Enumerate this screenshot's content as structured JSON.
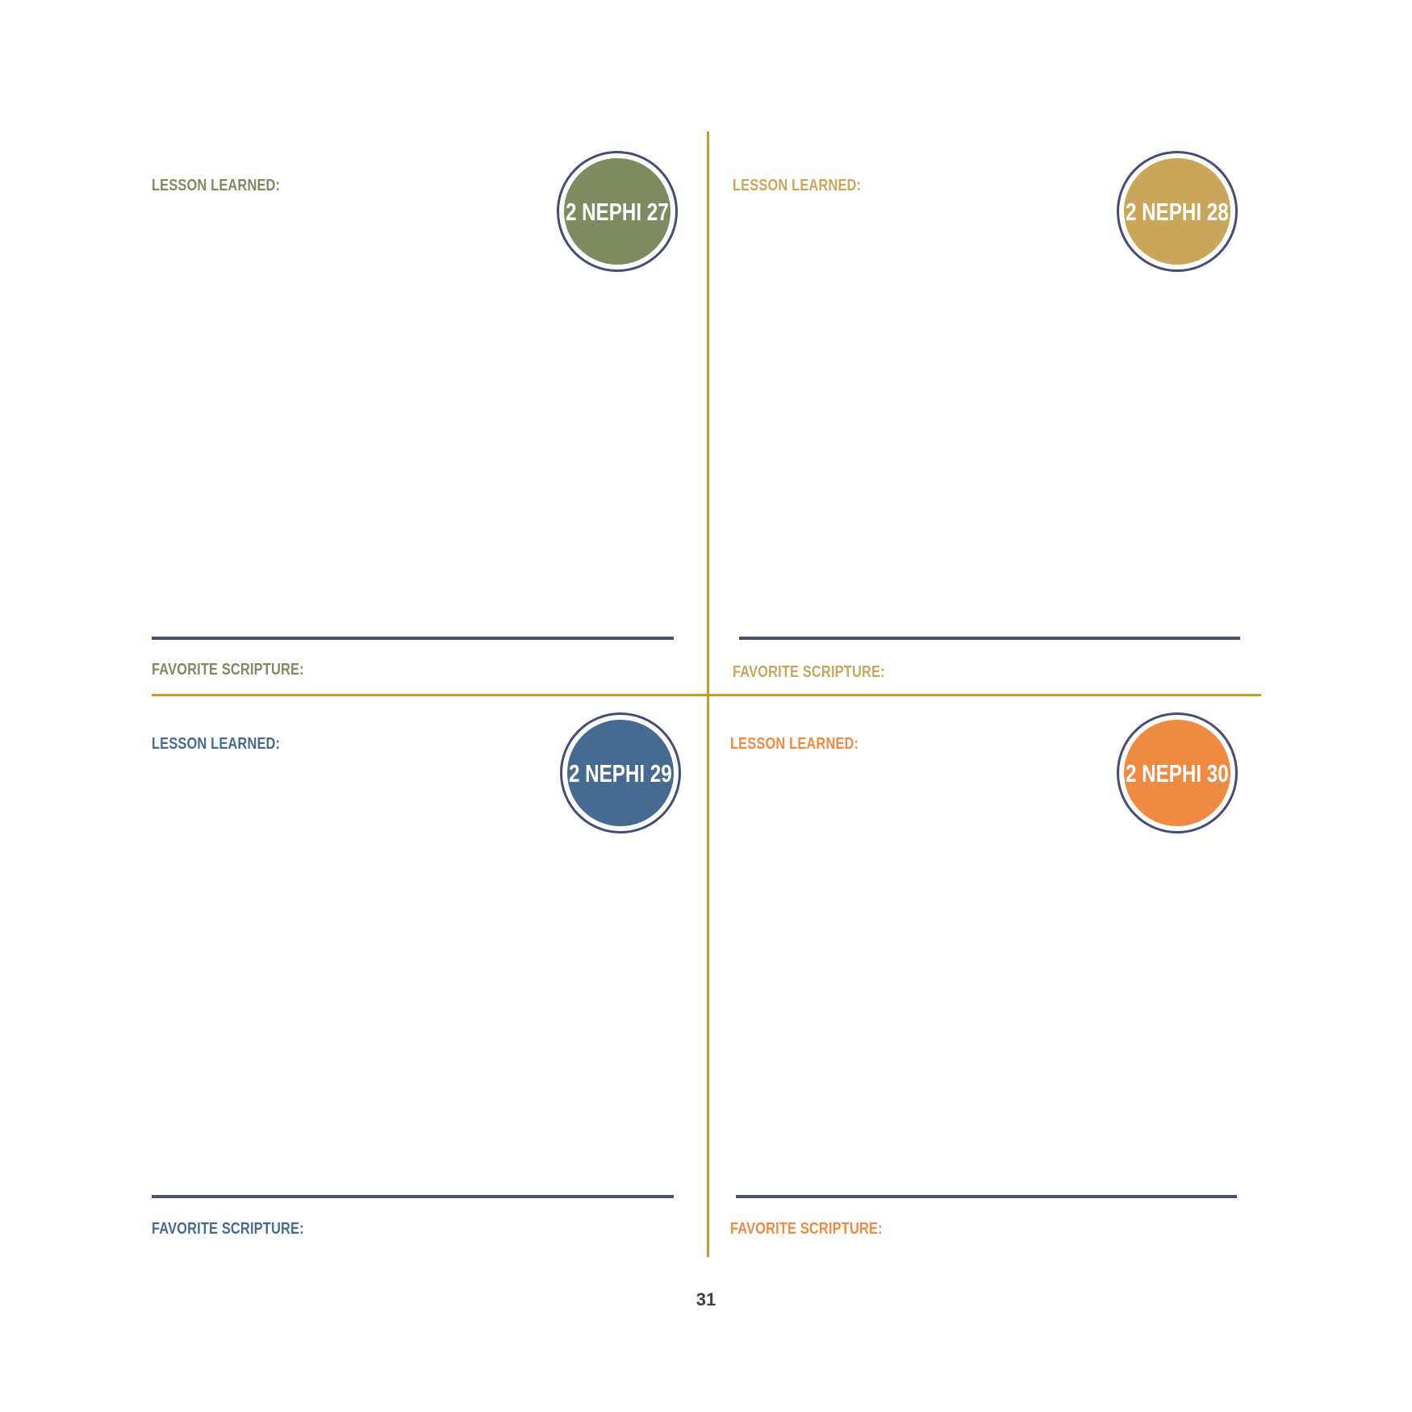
{
  "quadrants": [
    {
      "chapter": "2 NEPHI 27",
      "lesson_label": "LESSON LEARNED:",
      "scripture_label": "FAVORITE SCRIPTURE:",
      "color": "#7e8a5f"
    },
    {
      "chapter": "2 NEPHI 28",
      "lesson_label": "LESSON LEARNED:",
      "scripture_label": "FAVORITE SCRIPTURE:",
      "color": "#c9a65a"
    },
    {
      "chapter": "2 NEPHI 29",
      "lesson_label": "LESSON LEARNED:",
      "scripture_label": "FAVORITE SCRIPTURE:",
      "color": "#476a90"
    },
    {
      "chapter": "2 NEPHI 30",
      "lesson_label": "LESSON LEARNED:",
      "scripture_label": "FAVORITE SCRIPTURE:",
      "color": "#ef8a42"
    }
  ],
  "page_number": "31",
  "colors": {
    "divider": "#c49a2a",
    "rule": "#4b4f72",
    "badge_ring": "#474b78",
    "page_number": "#3c4056"
  }
}
